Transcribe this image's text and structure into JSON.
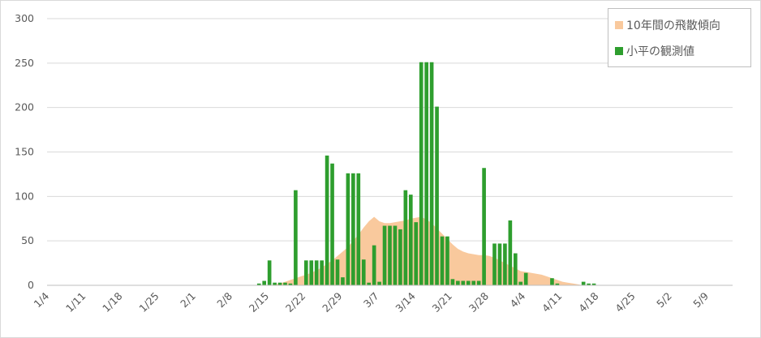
{
  "chart_data": {
    "type": "bar-area",
    "categories": [
      "1/4",
      null,
      null,
      null,
      null,
      null,
      null,
      "1/11",
      null,
      null,
      null,
      null,
      null,
      null,
      "1/18",
      null,
      null,
      null,
      null,
      null,
      null,
      "1/25",
      null,
      null,
      null,
      null,
      null,
      null,
      "2/1",
      null,
      null,
      null,
      null,
      null,
      null,
      "2/8",
      null,
      null,
      null,
      null,
      null,
      null,
      "2/15",
      null,
      null,
      null,
      null,
      null,
      null,
      "2/22",
      null,
      null,
      null,
      null,
      null,
      null,
      "2/29",
      null,
      null,
      null,
      null,
      null,
      null,
      "3/7",
      null,
      null,
      null,
      null,
      null,
      null,
      "3/14",
      null,
      null,
      null,
      null,
      null,
      null,
      "3/21",
      null,
      null,
      null,
      null,
      null,
      null,
      "3/28",
      null,
      null,
      null,
      null,
      null,
      null,
      "4/4",
      null,
      null,
      null,
      null,
      null,
      null,
      "4/11",
      null,
      null,
      null,
      null,
      null,
      null,
      "4/18",
      null,
      null,
      null,
      null,
      null,
      null,
      "4/25",
      null,
      null,
      null,
      null,
      null,
      null,
      "5/2",
      null,
      null,
      null,
      null,
      null,
      null,
      "5/9",
      null,
      null,
      null,
      null
    ],
    "series": [
      {
        "name": "10年間の飛散傾向",
        "type": "area",
        "color": "#f9c99d",
        "values": [
          0,
          0,
          0,
          0,
          0,
          0,
          0,
          0,
          0,
          0,
          0,
          0,
          0,
          0,
          0,
          0,
          0,
          0,
          0,
          0,
          0,
          0,
          0,
          0,
          0,
          0,
          0,
          0,
          0,
          0,
          0,
          0,
          0,
          0,
          0,
          0,
          0,
          0,
          0,
          0,
          0,
          0,
          0,
          1,
          2,
          4,
          6,
          8,
          10,
          12,
          14,
          17,
          20,
          24,
          28,
          33,
          38,
          43,
          50,
          57,
          65,
          72,
          77,
          72,
          70,
          70,
          71,
          72,
          73,
          75,
          76,
          77,
          74,
          70,
          64,
          58,
          52,
          46,
          41,
          38,
          36,
          35,
          34,
          34,
          33,
          31,
          28,
          25,
          22,
          19,
          16,
          15,
          14,
          13,
          12,
          10,
          8,
          6,
          4,
          3,
          2,
          1,
          0,
          0,
          0,
          0,
          0,
          0,
          0,
          0,
          0,
          0,
          0,
          0,
          0,
          0,
          0,
          0,
          0,
          0,
          0,
          0,
          0,
          0,
          0,
          0,
          0,
          0,
          0,
          0,
          0
        ]
      },
      {
        "name": "小平の観測値",
        "type": "bar",
        "color": "#2e9e2e",
        "values": [
          0,
          0,
          0,
          0,
          0,
          0,
          0,
          0,
          0,
          0,
          0,
          0,
          0,
          0,
          0,
          0,
          0,
          0,
          0,
          0,
          0,
          0,
          0,
          0,
          0,
          0,
          0,
          0,
          0,
          0,
          0,
          0,
          0,
          0,
          0,
          0,
          0,
          0,
          0,
          0,
          2,
          5,
          28,
          3,
          3,
          3,
          2,
          107,
          0,
          28,
          28,
          28,
          28,
          146,
          137,
          29,
          9,
          126,
          126,
          126,
          29,
          3,
          45,
          4,
          67,
          67,
          67,
          63,
          107,
          102,
          71,
          251,
          251,
          251,
          201,
          55,
          55,
          7,
          5,
          5,
          5,
          5,
          5,
          132,
          0,
          47,
          47,
          47,
          73,
          36,
          4,
          14,
          0,
          0,
          0,
          0,
          8,
          2,
          0,
          0,
          0,
          0,
          4,
          2,
          2,
          0,
          0,
          0,
          0,
          0,
          0,
          0,
          0,
          0,
          0,
          0,
          0,
          0,
          0,
          0,
          0,
          0,
          0,
          0,
          0,
          0,
          0,
          0,
          0,
          0,
          0
        ]
      }
    ],
    "ylim": [
      0,
      300
    ],
    "yticks": [
      0,
      50,
      100,
      150,
      200,
      250,
      300
    ],
    "grid": true,
    "legend": "top-right"
  }
}
